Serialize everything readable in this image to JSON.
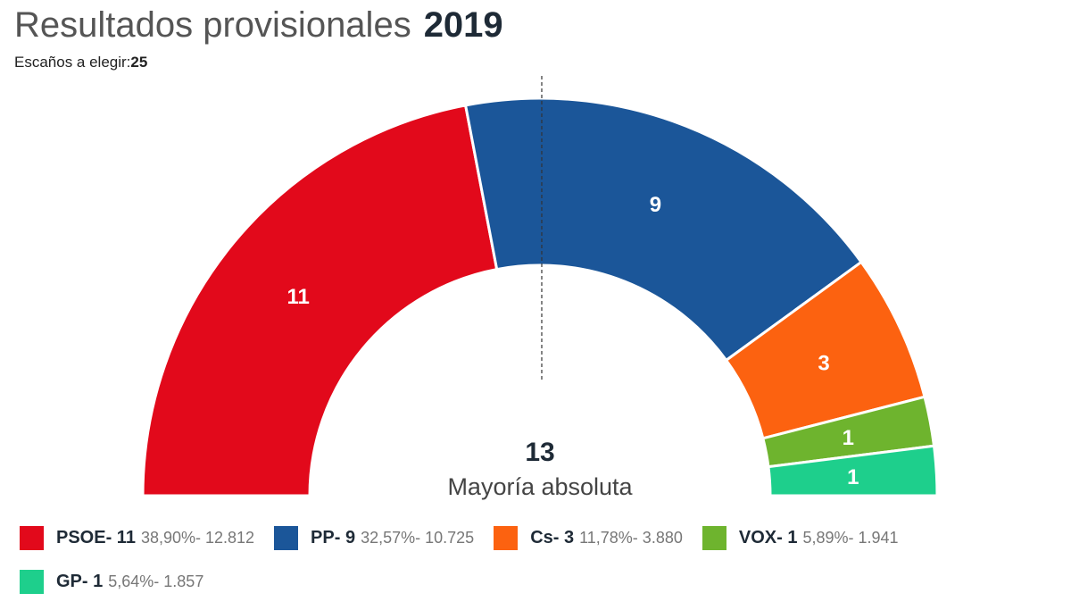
{
  "header": {
    "title": "Resultados provisionales",
    "year": "2019",
    "subtitle_label": "Escaños a elegir:",
    "subtitle_value": "25"
  },
  "chart_data": {
    "type": "pie",
    "subtype": "half-donut",
    "title": "Resultados provisionales 2019",
    "total_seats": 25,
    "majority_value": "13",
    "majority_label": "Mayoría absoluta",
    "series": [
      {
        "name": "PSOE",
        "seats": 11,
        "seats_label": "11",
        "color": "#e2091b",
        "legend_name": "PSOE- 11",
        "legend_stat": "38,90%- 12.812",
        "percent": 38.9,
        "votes": 12812
      },
      {
        "name": "PP",
        "seats": 9,
        "seats_label": "9",
        "color": "#1b5699",
        "legend_name": "PP- 9",
        "legend_stat": "32,57%- 10.725",
        "percent": 32.57,
        "votes": 10725
      },
      {
        "name": "Cs",
        "seats": 3,
        "seats_label": "3",
        "color": "#fc6210",
        "legend_name": "Cs- 3",
        "legend_stat": "11,78%- 3.880",
        "percent": 11.78,
        "votes": 3880
      },
      {
        "name": "VOX",
        "seats": 1,
        "seats_label": "1",
        "color": "#6eb42e",
        "legend_name": "VOX- 1",
        "legend_stat": "5,89%- 1.941",
        "percent": 5.89,
        "votes": 1941
      },
      {
        "name": "GP",
        "seats": 1,
        "seats_label": "1",
        "color": "#1ecf8c",
        "legend_name": "GP- 1",
        "legend_stat": "5,64%- 1.857",
        "percent": 5.64,
        "votes": 1857
      }
    ],
    "legend_position": "bottom"
  }
}
